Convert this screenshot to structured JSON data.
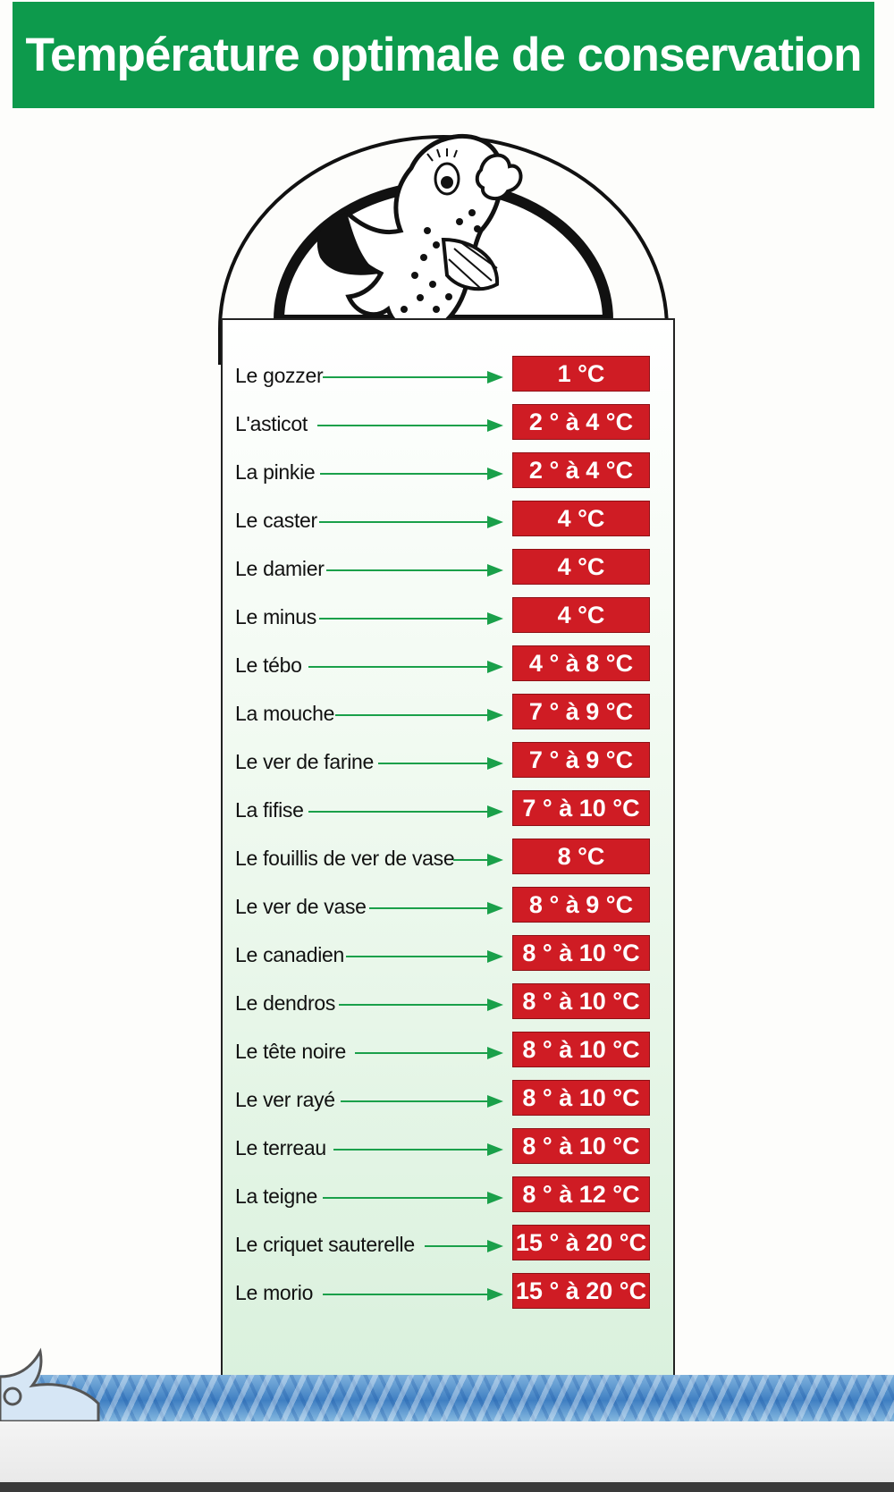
{
  "header": {
    "title": "Température optimale de conservation"
  },
  "colors": {
    "header_green": "#0d9a4c",
    "badge_red": "#cf1c24",
    "arrow_green": "#1aa04a"
  },
  "rows": [
    {
      "name": "Le gozzer",
      "temp": "1 °C"
    },
    {
      "name": "L'asticot",
      "temp": "2 ° à 4 °C"
    },
    {
      "name": "La pinkie",
      "temp": "2 ° à 4 °C"
    },
    {
      "name": "Le caster",
      "temp": "4 °C"
    },
    {
      "name": "Le damier",
      "temp": "4 °C"
    },
    {
      "name": "Le minus",
      "temp": "4 °C"
    },
    {
      "name": "Le tébo",
      "temp": "4 ° à 8 °C"
    },
    {
      "name": "La mouche",
      "temp": "7 ° à 9 °C"
    },
    {
      "name": "Le ver de farine",
      "temp": "7 ° à 9 °C"
    },
    {
      "name": "La fifise",
      "temp": "7 ° à 10 °C"
    },
    {
      "name": "Le fouillis de ver de vase",
      "temp": "8 °C"
    },
    {
      "name": "Le ver de vase",
      "temp": "8 ° à 9 °C"
    },
    {
      "name": "Le canadien",
      "temp": "8 ° à 10 °C"
    },
    {
      "name": "Le dendros",
      "temp": "8 ° à 10 °C"
    },
    {
      "name": "Le tête noire",
      "temp": "8 ° à 10 °C"
    },
    {
      "name": "Le ver rayé",
      "temp": "8 ° à 10 °C"
    },
    {
      "name": "Le terreau",
      "temp": "8 ° à 10 °C"
    },
    {
      "name": "La teigne",
      "temp": "8 ° à 12 °C"
    },
    {
      "name": "Le criquet sauterelle",
      "temp": "15 ° à 20 °C"
    },
    {
      "name": "Le morio",
      "temp": "15 ° à 20 °C"
    }
  ]
}
